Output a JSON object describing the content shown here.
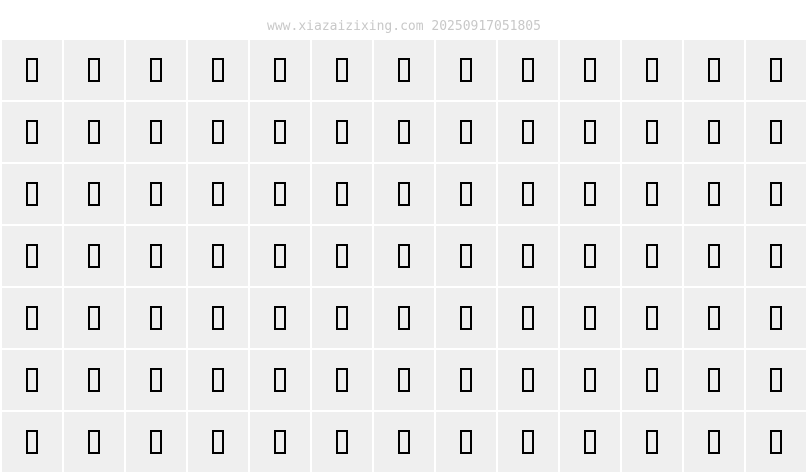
{
  "watermark": "www.xiazaizixing.com 20250917051805",
  "grid": {
    "rows": 7,
    "columns": 13,
    "glyph_icon": "missing-glyph-box-icon",
    "cell_background": "#efefef",
    "glyph_color": "#000000"
  }
}
